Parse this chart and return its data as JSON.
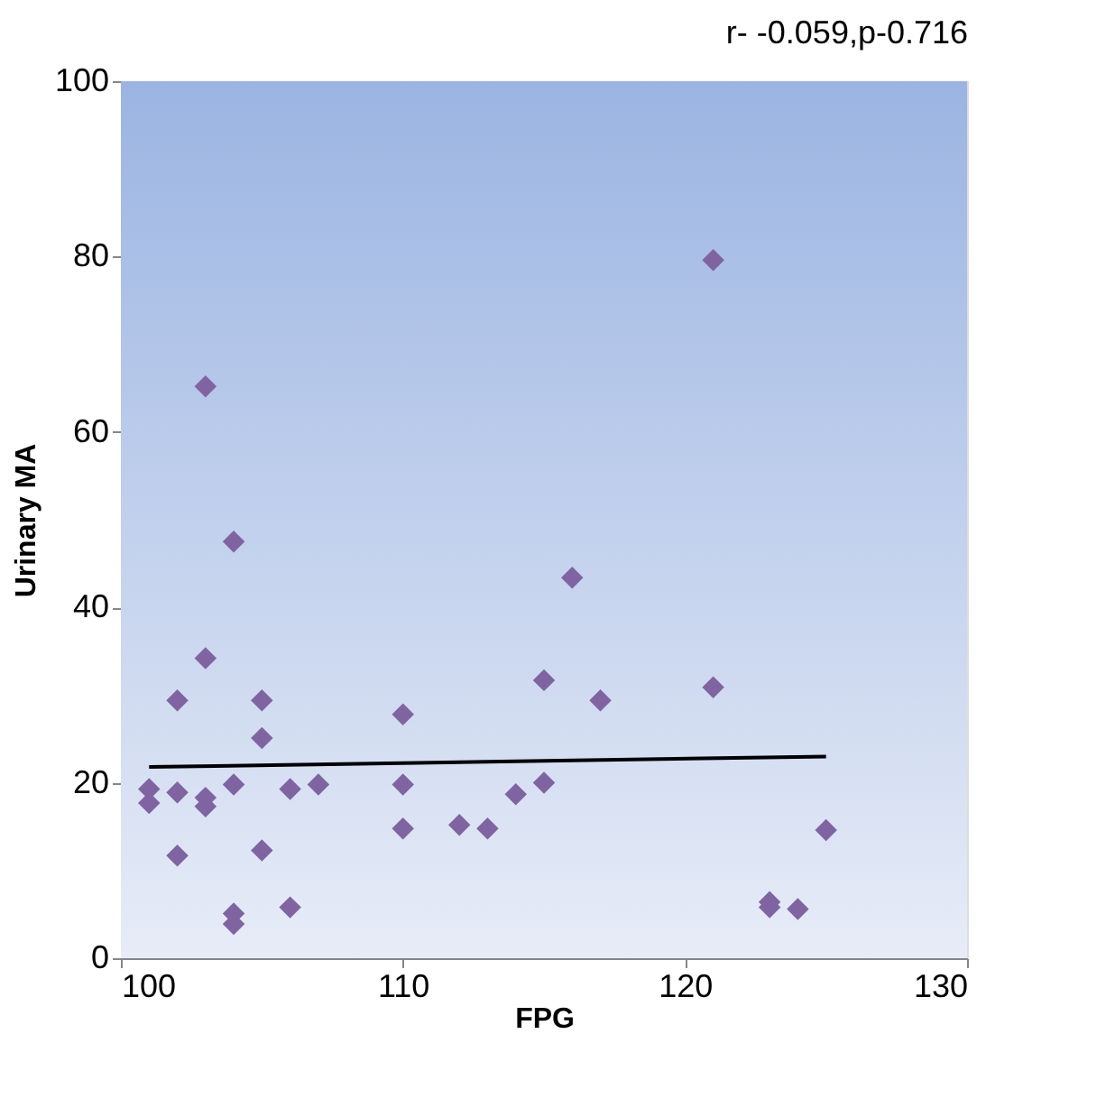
{
  "chart_data": {
    "type": "scatter",
    "xlabel": "FPG",
    "ylabel": "Urinary MA",
    "annotations": [
      "r- -0.059,p-0.716"
    ],
    "xlim": [
      100,
      130
    ],
    "xticks": [
      100,
      110,
      120,
      130
    ],
    "ylim": [
      0,
      100
    ],
    "yticks": [
      0,
      20,
      40,
      60,
      80,
      100
    ],
    "grid": false,
    "series": [
      {
        "color": "#8064a2",
        "marker": "diamond",
        "x": [
          101,
          101,
          102,
          102,
          102,
          103,
          103,
          103,
          103,
          104,
          104,
          104,
          104,
          105,
          105,
          105,
          106,
          106,
          107,
          110,
          110,
          110,
          112,
          113,
          114,
          115,
          115,
          116,
          117,
          121,
          121,
          123,
          123,
          124,
          125
        ],
        "values": [
          19.3,
          17.7,
          29.4,
          18.9,
          11.7,
          65.2,
          34.2,
          18.3,
          17.3,
          47.5,
          19.8,
          5.1,
          3.9,
          29.4,
          25.1,
          12.3,
          19.3,
          5.8,
          19.8,
          27.8,
          19.8,
          14.8,
          15.2,
          14.8,
          18.7,
          31.7,
          20.0,
          43.4,
          29.4,
          79.6,
          30.9,
          6.4,
          5.8,
          5.6,
          14.6
        ]
      },
      {
        "type": "line",
        "color": "#000000",
        "line_style": "solid",
        "x": [
          101,
          125
        ],
        "values": [
          21.8,
          23.0
        ]
      }
    ]
  }
}
